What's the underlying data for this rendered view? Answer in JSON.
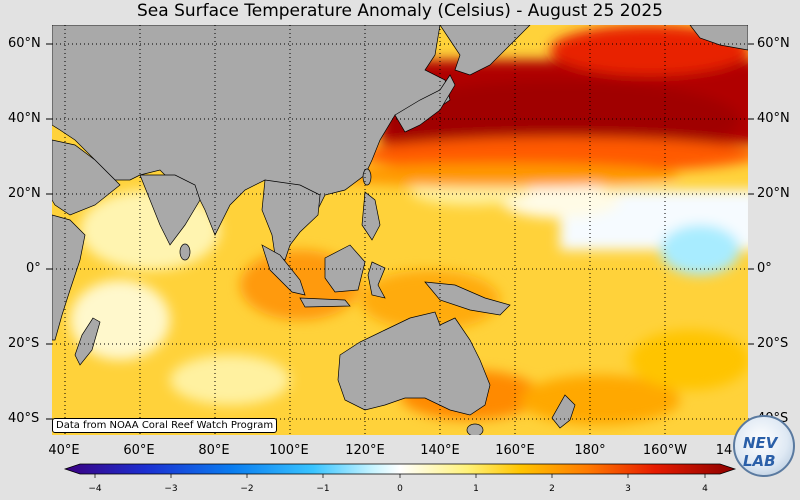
{
  "title": "Sea Surface Temperature Anomaly (Celsius) - August 25 2025",
  "lat_labels": [
    "60°N",
    "40°N",
    "20°N",
    "0°",
    "20°S",
    "40°S"
  ],
  "lat_labels_right": [
    "60°N",
    "40°N",
    "20°N",
    "0°",
    "20°S",
    "40°S"
  ],
  "lon_labels": [
    "40°E",
    "60°E",
    "80°E",
    "100°E",
    "120°E",
    "140°E",
    "160°E",
    "180°",
    "160°W",
    "14"
  ],
  "colorbar": {
    "ticks": [
      "−4",
      "−3",
      "−2",
      "−1",
      "0",
      "1",
      "2",
      "3",
      "4"
    ],
    "colors": [
      "#3b0080",
      "#1c2fd1",
      "#0a7df0",
      "#39c4ff",
      "#c8f4ff",
      "#ffffff",
      "#fff27a",
      "#ffc400",
      "#ff7a00",
      "#e61b00",
      "#8c0000"
    ]
  },
  "credit": "Data from NOAA Coral Reef Watch Program",
  "logo_text": "NEV LAB",
  "map_colors": {
    "land": "#a9a9a9",
    "ocean_base": "#ffd23a",
    "hot": "#c80000",
    "cool": "#c8f4ff"
  }
}
